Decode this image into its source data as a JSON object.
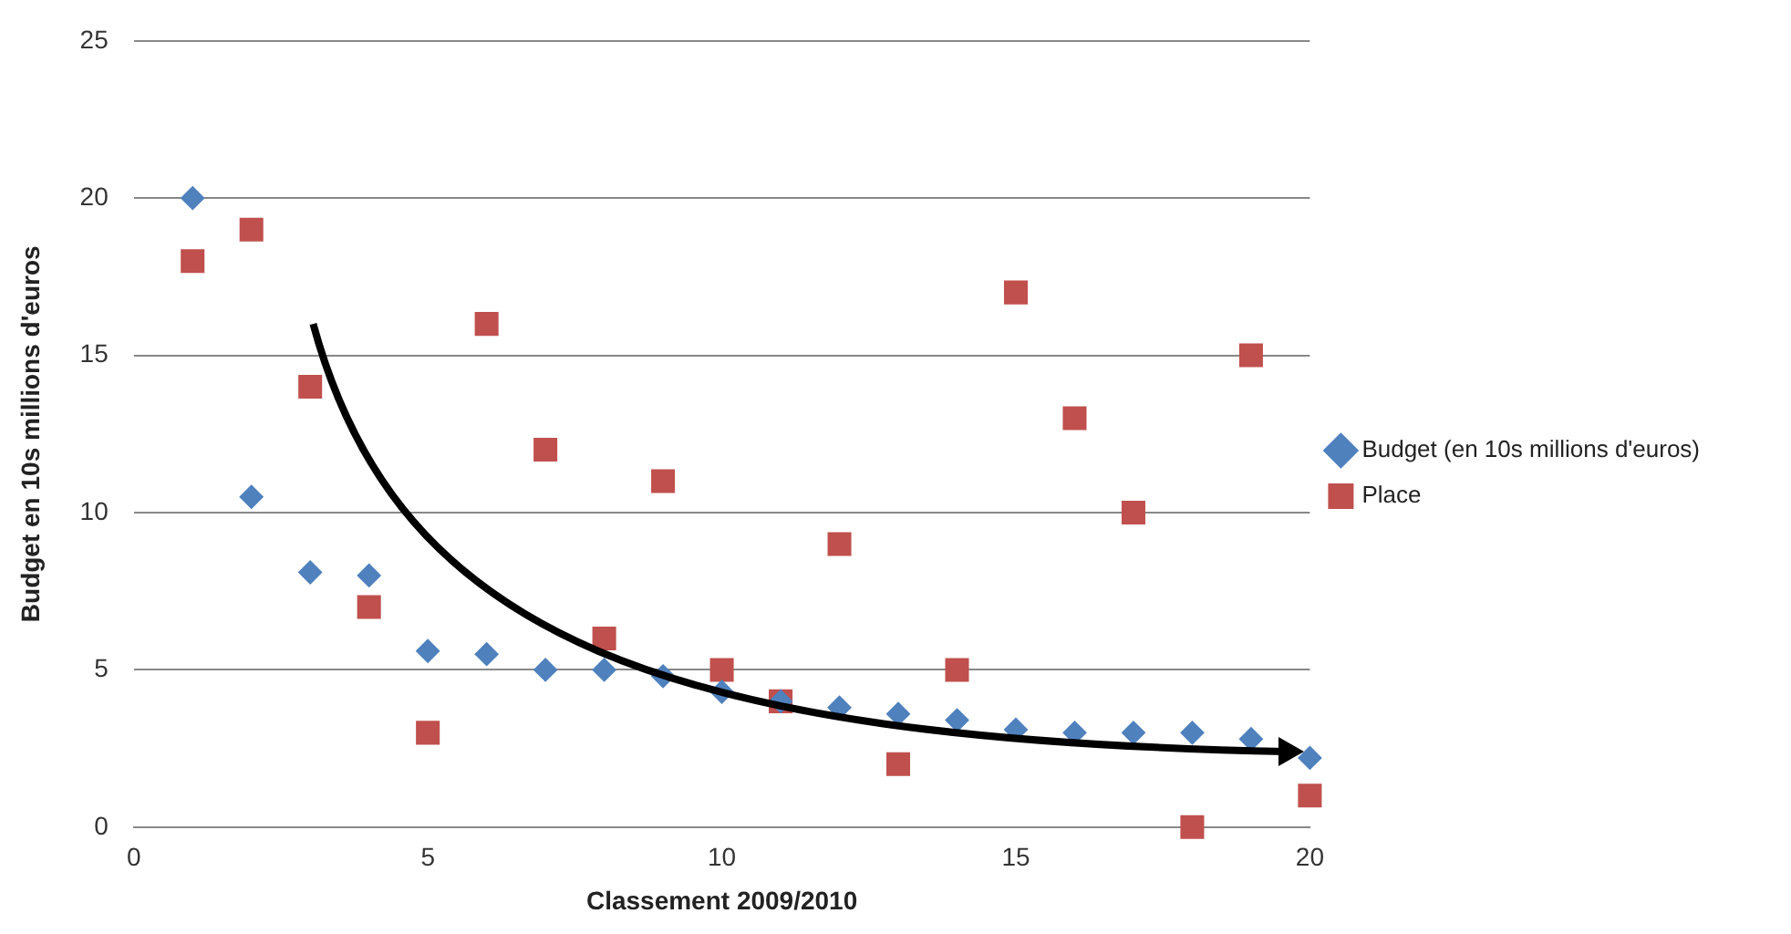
{
  "chart_data": {
    "type": "scatter",
    "xlabel": "Classement 2009/2010",
    "ylabel": "Budget en 10s millions d'euros",
    "x": [
      1,
      2,
      3,
      4,
      5,
      6,
      7,
      8,
      9,
      10,
      11,
      12,
      13,
      14,
      15,
      16,
      17,
      18,
      19,
      20
    ],
    "series": [
      {
        "name": "Budget (en 10s millions d'euros)",
        "color": "#4f81bd",
        "marker": "diamond",
        "values": [
          20,
          10.5,
          8.1,
          8,
          5.6,
          5.5,
          5,
          5,
          4.8,
          4.3,
          4,
          3.8,
          3.6,
          3.4,
          3.1,
          3,
          3,
          3,
          2.8,
          2.2
        ]
      },
      {
        "name": "Place",
        "color": "#c0504d",
        "marker": "square",
        "values": [
          18,
          19,
          14,
          7,
          3,
          16,
          12,
          6,
          11,
          5,
          4,
          9,
          2,
          5,
          17,
          13,
          10,
          0,
          15,
          1
        ]
      }
    ],
    "xlim": [
      0,
      20
    ],
    "xticks": [
      0,
      5,
      10,
      15,
      20
    ],
    "ylim": [
      0,
      25
    ],
    "yticks": [
      0,
      5,
      10,
      15,
      20,
      25
    ],
    "grid": "y",
    "legend": "right"
  }
}
